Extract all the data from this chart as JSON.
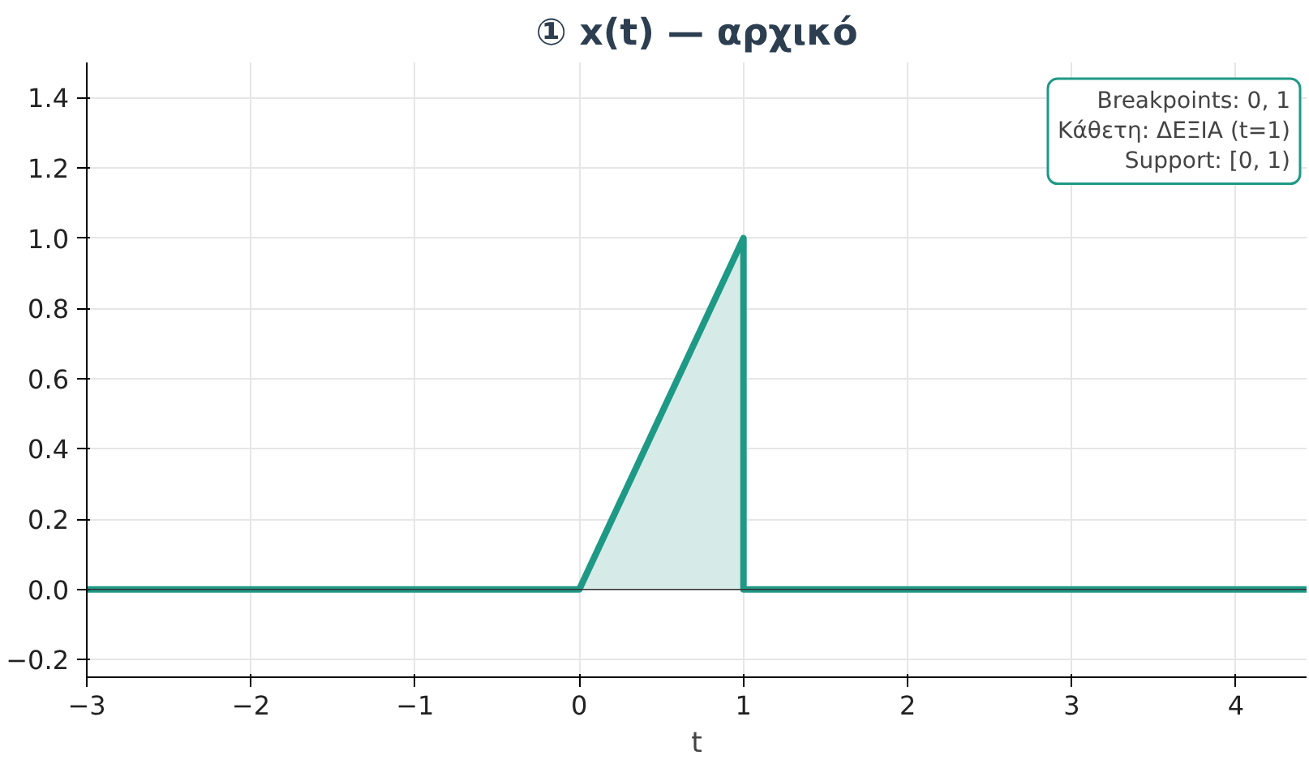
{
  "chart_data": {
    "type": "line",
    "title": "① x(t) — αρχικό",
    "xlabel": "t",
    "xlim": [
      -3,
      4.43
    ],
    "ylim": [
      -0.25,
      1.5
    ],
    "xticks": [
      {
        "value": -3,
        "label": "−3"
      },
      {
        "value": -2,
        "label": "−2"
      },
      {
        "value": -1,
        "label": "−1"
      },
      0,
      1,
      2,
      3,
      4
    ],
    "yticks": [
      {
        "value": -0.2,
        "label": "−0.2"
      },
      {
        "value": 0,
        "label": "0.0"
      },
      {
        "value": 0.2,
        "label": "0.2"
      },
      {
        "value": 0.4,
        "label": "0.4"
      },
      {
        "value": 0.6,
        "label": "0.6"
      },
      {
        "value": 0.8,
        "label": "0.8"
      },
      {
        "value": 1,
        "label": "1.0"
      },
      {
        "value": 1.2,
        "label": "1.2"
      },
      {
        "value": 1.4,
        "label": "1.4"
      }
    ],
    "grid": true,
    "line_style": "solid",
    "marker": "none",
    "series": [
      {
        "type": "area",
        "color": "#d6ebe8",
        "x": [
          0,
          1,
          1
        ],
        "values": [
          0,
          1,
          0
        ]
      },
      {
        "color": "#1e9985",
        "x": [
          -3,
          0,
          1,
          1,
          4.43
        ],
        "values": [
          0,
          0,
          1,
          0,
          0
        ]
      }
    ],
    "ref_lines": [
      {
        "axis": "y",
        "value": 0,
        "color": "#333333"
      }
    ],
    "annotations": [
      "Breakpoints: 0, 1\nΚάθετη: ΔΕΞΙΑ (t=1)\nSupport: [0, 1)"
    ]
  }
}
